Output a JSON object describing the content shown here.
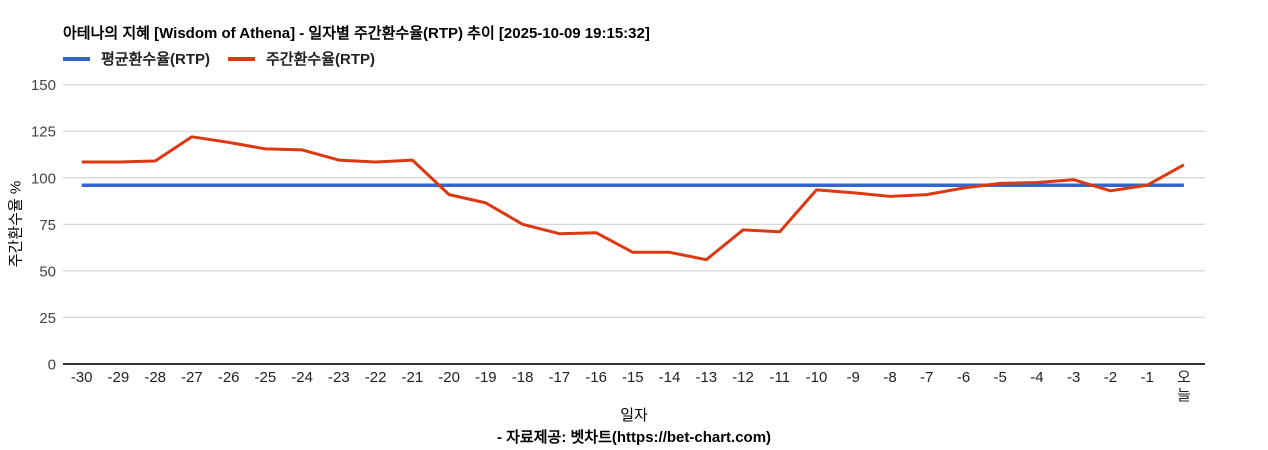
{
  "header": {
    "title": "아테나의 지혜 [Wisdom of Athena] - 일자별 주간환수율(RTP) 추이 [2025-10-09 19:15:32]"
  },
  "legend": {
    "average_label": "평균환수율(RTP)",
    "weekly_label": "주간환수율(RTP)"
  },
  "footer": {
    "source": "- 자료제공: 벳차트(https://bet-chart.com)"
  },
  "colors": {
    "average": "#3366cc",
    "weekly": "#dc3912",
    "grid": "#cccccc",
    "axis": "#333333",
    "y_tick_text": "#444444",
    "x_tick_text": "#222222"
  },
  "chart_data": {
    "type": "line",
    "title": "아테나의 지혜 [Wisdom of Athena] - 일자별 주간환수율(RTP) 추이 [2025-10-09 19:15:32]",
    "xlabel": "일자",
    "ylabel": "주간환수율 %",
    "ylim": [
      0,
      150
    ],
    "y_ticks": [
      0,
      25,
      50,
      75,
      100,
      125,
      150
    ],
    "grid": true,
    "legend_position": "top",
    "categories": [
      "-30",
      "-29",
      "-28",
      "-27",
      "-26",
      "-25",
      "-24",
      "-23",
      "-22",
      "-21",
      "-20",
      "-19",
      "-18",
      "-17",
      "-16",
      "-15",
      "-14",
      "-13",
      "-12",
      "-11",
      "-10",
      "-9",
      "-8",
      "-7",
      "-6",
      "-5",
      "-4",
      "-3",
      "-2",
      "-1",
      "오늘"
    ],
    "series": [
      {
        "name": "평균환수율(RTP)",
        "color": "#3366cc",
        "values": [
          96,
          96,
          96,
          96,
          96,
          96,
          96,
          96,
          96,
          96,
          96,
          96,
          96,
          96,
          96,
          96,
          96,
          96,
          96,
          96,
          96,
          96,
          96,
          96,
          96,
          96,
          96,
          96,
          96,
          96,
          96
        ]
      },
      {
        "name": "주간환수율(RTP)",
        "color": "#dc3912",
        "values": [
          108.5,
          108.5,
          109,
          122,
          119,
          115.5,
          115,
          109.5,
          108.5,
          109.5,
          91,
          86.5,
          75,
          70,
          70.5,
          60,
          60,
          56,
          72,
          71,
          93.5,
          92,
          90,
          91,
          94.5,
          97,
          97.5,
          99,
          93,
          96,
          107
        ]
      }
    ]
  }
}
